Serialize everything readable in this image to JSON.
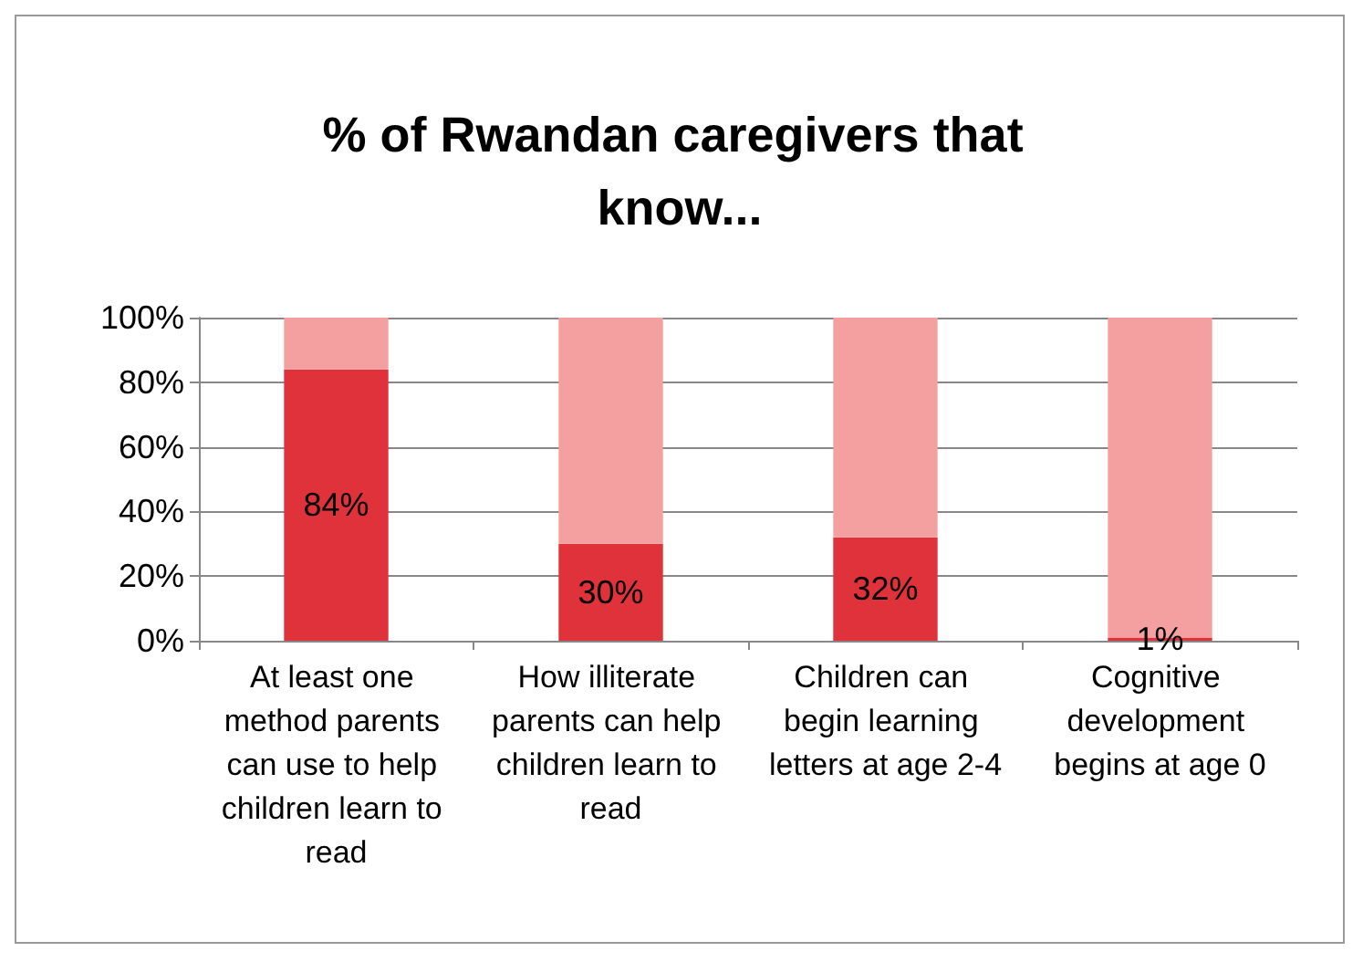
{
  "chart_data": {
    "type": "bar",
    "title": "% of Rwandan caregivers that know...",
    "stacked": true,
    "categories": [
      "At least one method parents can use to help children learn to read",
      "How illiterate parents can help children learn to read",
      "Children can begin learning letters at age 2-4",
      "Cognitive development begins at age 0"
    ],
    "series": [
      {
        "color": "#e0323a",
        "values": [
          84,
          30,
          32,
          1
        ],
        "value_labels": [
          "84%",
          "30%",
          "32%",
          "1%"
        ]
      },
      {
        "color": "#f5a0a0",
        "values": [
          16,
          70,
          68,
          99
        ]
      }
    ],
    "ylim": [
      0,
      100
    ],
    "yticks": [
      {
        "value": 0,
        "label": "0%"
      },
      {
        "value": 20,
        "label": "20%"
      },
      {
        "value": 40,
        "label": "40%"
      },
      {
        "value": 60,
        "label": "60%"
      },
      {
        "value": 80,
        "label": "80%"
      },
      {
        "value": 100,
        "label": "100%"
      }
    ],
    "grid": "y"
  }
}
